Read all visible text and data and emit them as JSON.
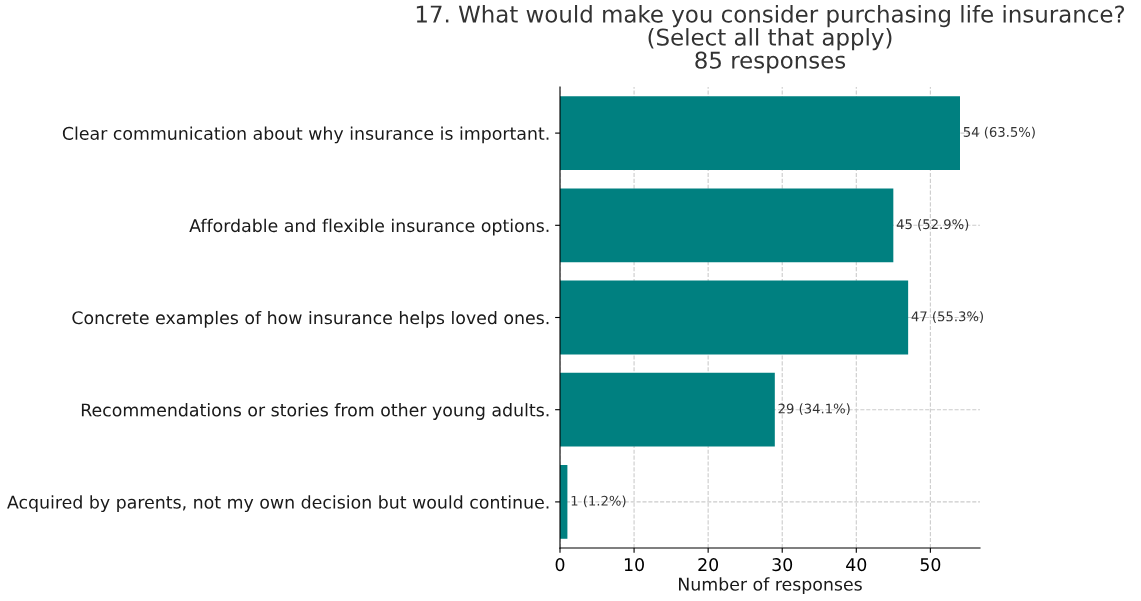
{
  "chart_data": {
    "type": "bar",
    "orientation": "horizontal",
    "title": "17. What would make you consider purchasing life insurance?\n(Select all that apply)\n85 responses",
    "xlabel": "Number of responses",
    "categories": [
      "Clear communication about why insurance is important.",
      "Affordable and flexible insurance options.",
      "Concrete examples of how insurance helps loved ones.",
      "Recommendations or stories from other young adults.",
      "Acquired by parents, not my own decision but would continue."
    ],
    "values": [
      54,
      45,
      47,
      29,
      1
    ],
    "value_labels": [
      "54 (63.5%)",
      "45 (52.9%)",
      "47 (55.3%)",
      "29 (34.1%)",
      "1 (1.2%)"
    ],
    "color": "#008080",
    "xlim": [
      0,
      56.7
    ],
    "xticks": [
      0,
      10,
      20,
      30,
      40,
      50
    ],
    "grid": true
  }
}
